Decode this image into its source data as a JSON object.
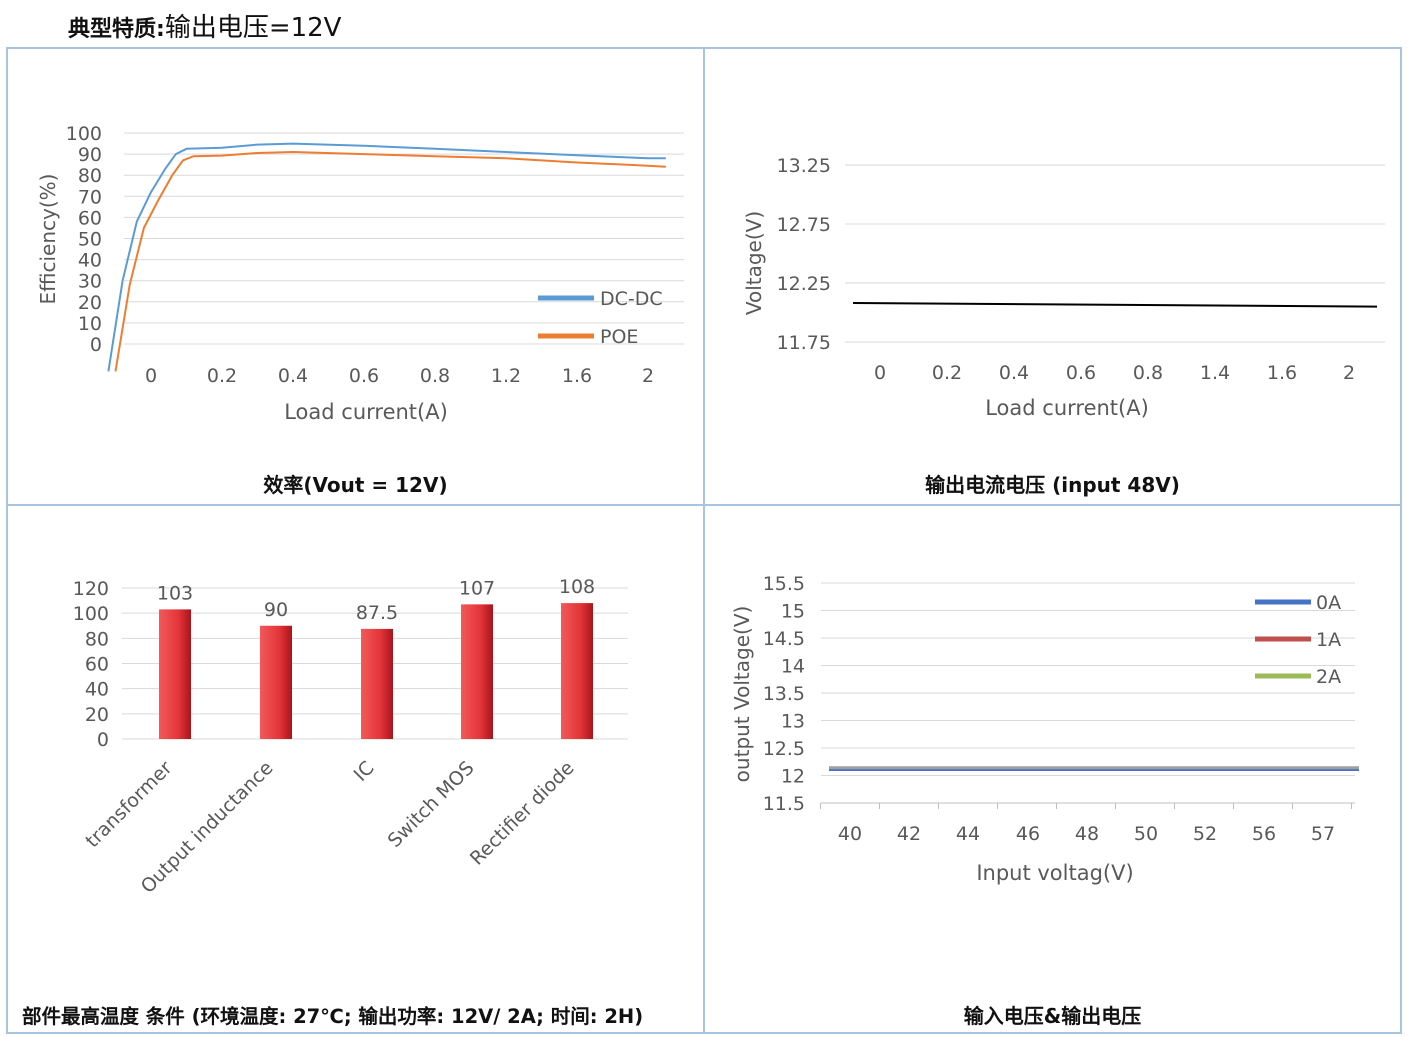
{
  "header": {
    "title_bold": "典型特质:",
    "title_rest": "输出电压=12V"
  },
  "colors": {
    "panel_border": "#a9c3e3",
    "grid": "#d9d9d9",
    "dcdc": "#5b9bd5",
    "poe": "#ed7d31",
    "bar": "#e3353a",
    "line_0a": "#4472c4",
    "line_1a": "#c0504d",
    "line_2a": "#9bbb59"
  },
  "chart_data": [
    {
      "type": "line",
      "caption": "效率(Vout = 12V)",
      "xlabel": "Load current(A)",
      "ylabel": "Efficiency(%)",
      "ylim": [
        0,
        100
      ],
      "yticks": [
        100,
        90,
        80,
        70,
        60,
        50,
        40,
        30,
        20,
        10,
        0
      ],
      "categories": [
        "0",
        "0.2",
        "0.4",
        "0.6",
        "0.8",
        "1.2",
        "1.6",
        "2"
      ],
      "grid": true,
      "legend": "right",
      "series": [
        {
          "name": "DC-DC",
          "color": "#5b9bd5",
          "points": [
            [
              -0.12,
              -13
            ],
            [
              -0.08,
              30
            ],
            [
              -0.04,
              58
            ],
            [
              0,
              72
            ],
            [
              0.04,
              83
            ],
            [
              0.07,
              90
            ],
            [
              0.1,
              92.5
            ],
            [
              0.2,
              93
            ],
            [
              0.3,
              94.5
            ],
            [
              0.4,
              95
            ],
            [
              0.6,
              94
            ],
            [
              0.8,
              92.5
            ],
            [
              1.2,
              91
            ],
            [
              1.6,
              89.5
            ],
            [
              2,
              88
            ],
            [
              2.1,
              88
            ]
          ]
        },
        {
          "name": "POE",
          "color": "#ed7d31",
          "points": [
            [
              -0.1,
              -13
            ],
            [
              -0.06,
              28
            ],
            [
              -0.02,
              55
            ],
            [
              0.02,
              68
            ],
            [
              0.06,
              80
            ],
            [
              0.09,
              87
            ],
            [
              0.12,
              89
            ],
            [
              0.2,
              89.3
            ],
            [
              0.3,
              90.5
            ],
            [
              0.4,
              91
            ],
            [
              0.6,
              90
            ],
            [
              0.8,
              89
            ],
            [
              1.2,
              88
            ],
            [
              1.6,
              86
            ],
            [
              2,
              84.5
            ],
            [
              2.1,
              84
            ]
          ]
        }
      ]
    },
    {
      "type": "line",
      "caption": "输出电流电压 (input 48V)",
      "xlabel": "Load current(A)",
      "ylabel": "Voltage(V)",
      "ylim": [
        11.75,
        13.25
      ],
      "yticks": [
        "13.25",
        "12.75",
        "12.25",
        "11.75"
      ],
      "categories": [
        "0",
        "0.2",
        "0.4",
        "0.6",
        "0.8",
        "1.4",
        "1.6",
        "2"
      ],
      "grid": true,
      "series": [
        {
          "color": "#000000",
          "points": [
            [
              -0.05,
              12.08
            ],
            [
              2.05,
              12.05
            ]
          ]
        }
      ]
    },
    {
      "type": "bar",
      "caption": "部件最高温度 条件 (环境温度: 27℃; 输出功率: 12V/ 2A; 时间: 2H)",
      "categories": [
        "transformer",
        "Output inductance",
        "IC",
        "Switch MOS",
        "Rectifier diode"
      ],
      "values": [
        103,
        90,
        87.5,
        107,
        108
      ],
      "data_labels": [
        "103",
        "90",
        "87.5",
        "107",
        "108"
      ],
      "ylim": [
        0,
        120
      ],
      "yticks": [
        120,
        100,
        80,
        60,
        40,
        20,
        0
      ],
      "grid": true
    },
    {
      "type": "line",
      "caption": "输入电压&输出电压",
      "xlabel": "Input voltag(V)",
      "ylabel": "output Voltage(V)",
      "ylim": [
        11.5,
        15.5
      ],
      "yticks": [
        "15.5",
        "15",
        "14.5",
        "14",
        "13.5",
        "13",
        "12.5",
        "12",
        "11.5"
      ],
      "categories": [
        "40",
        "42",
        "44",
        "46",
        "48",
        "50",
        "52",
        "56",
        "57"
      ],
      "grid": true,
      "legend": "top-right",
      "series": [
        {
          "name": "0A",
          "color": "#4472c4",
          "value": 12.1
        },
        {
          "name": "1A",
          "color": "#c0504d",
          "value": 12.13
        },
        {
          "name": "2A",
          "color": "#9bbb59",
          "value": 12.14
        }
      ]
    }
  ]
}
